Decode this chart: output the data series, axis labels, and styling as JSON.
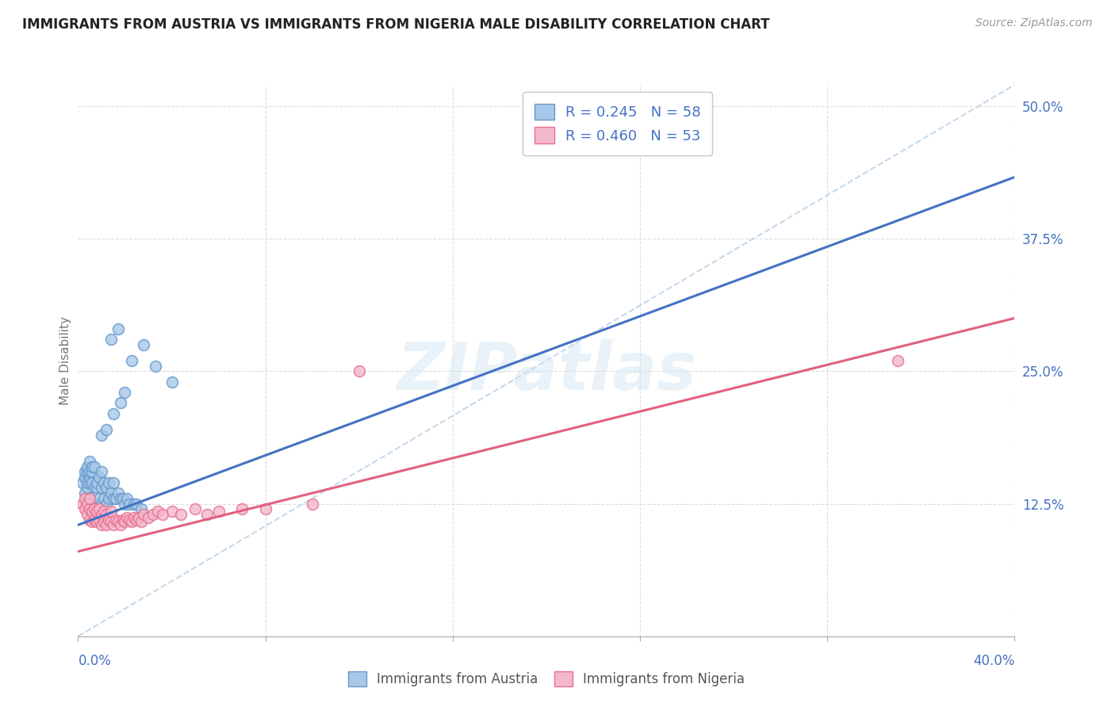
{
  "title": "IMMIGRANTS FROM AUSTRIA VS IMMIGRANTS FROM NIGERIA MALE DISABILITY CORRELATION CHART",
  "source": "Source: ZipAtlas.com",
  "ylabel": "Male Disability",
  "ytick_values": [
    0.0,
    0.125,
    0.25,
    0.375,
    0.5
  ],
  "xtick_values": [
    0.0,
    0.08,
    0.16,
    0.24,
    0.32,
    0.4
  ],
  "xlim": [
    0.0,
    0.4
  ],
  "ylim": [
    0.0,
    0.52
  ],
  "austria_color": "#a8c8e8",
  "austria_edge_color": "#6699cc",
  "austria_line_color": "#4472c4",
  "nigeria_color": "#f4b8cc",
  "nigeria_edge_color": "#e87090",
  "nigeria_line_color": "#e06080",
  "austria_R": 0.245,
  "austria_N": 58,
  "nigeria_R": 0.46,
  "nigeria_N": 53,
  "austria_line_intercept": 0.105,
  "austria_line_slope": 0.82,
  "nigeria_line_intercept": 0.08,
  "nigeria_line_slope": 0.55,
  "diagonal_line_color": "#a0c0e0",
  "background_color": "#ffffff",
  "grid_color": "#dddddd",
  "watermark_text": "ZIPatlas",
  "legend_box_color_austria": "#a8c8e8",
  "legend_box_edge_austria": "#6699cc",
  "legend_box_color_nigeria": "#f4b8cc",
  "legend_box_edge_nigeria": "#e87090",
  "legend_value_color": "#4472c4",
  "right_axis_label_color": "#4472c4",
  "austria_scatter_x": [
    0.002,
    0.003,
    0.003,
    0.003,
    0.004,
    0.004,
    0.004,
    0.004,
    0.005,
    0.005,
    0.005,
    0.005,
    0.005,
    0.006,
    0.006,
    0.006,
    0.006,
    0.007,
    0.007,
    0.007,
    0.008,
    0.008,
    0.008,
    0.009,
    0.009,
    0.01,
    0.01,
    0.01,
    0.011,
    0.011,
    0.012,
    0.012,
    0.013,
    0.013,
    0.014,
    0.015,
    0.015,
    0.016,
    0.017,
    0.018,
    0.019,
    0.02,
    0.021,
    0.022,
    0.024,
    0.025,
    0.027,
    0.01,
    0.012,
    0.015,
    0.018,
    0.02,
    0.014,
    0.017,
    0.023,
    0.028,
    0.033,
    0.04
  ],
  "austria_scatter_y": [
    0.145,
    0.135,
    0.15,
    0.155,
    0.14,
    0.145,
    0.155,
    0.16,
    0.13,
    0.145,
    0.15,
    0.155,
    0.165,
    0.125,
    0.145,
    0.155,
    0.16,
    0.125,
    0.14,
    0.16,
    0.125,
    0.14,
    0.145,
    0.13,
    0.15,
    0.125,
    0.14,
    0.155,
    0.13,
    0.145,
    0.125,
    0.14,
    0.13,
    0.145,
    0.135,
    0.13,
    0.145,
    0.13,
    0.135,
    0.13,
    0.13,
    0.125,
    0.13,
    0.125,
    0.125,
    0.125,
    0.12,
    0.19,
    0.195,
    0.21,
    0.22,
    0.23,
    0.28,
    0.29,
    0.26,
    0.275,
    0.255,
    0.24
  ],
  "nigeria_scatter_x": [
    0.002,
    0.003,
    0.003,
    0.004,
    0.004,
    0.005,
    0.005,
    0.005,
    0.006,
    0.006,
    0.007,
    0.007,
    0.008,
    0.008,
    0.009,
    0.009,
    0.01,
    0.01,
    0.011,
    0.011,
    0.012,
    0.012,
    0.013,
    0.014,
    0.014,
    0.015,
    0.016,
    0.017,
    0.018,
    0.019,
    0.02,
    0.021,
    0.022,
    0.023,
    0.024,
    0.025,
    0.026,
    0.027,
    0.028,
    0.03,
    0.032,
    0.034,
    0.036,
    0.04,
    0.044,
    0.05,
    0.055,
    0.06,
    0.07,
    0.08,
    0.1,
    0.12,
    0.35
  ],
  "nigeria_scatter_y": [
    0.125,
    0.12,
    0.13,
    0.115,
    0.125,
    0.11,
    0.12,
    0.13,
    0.108,
    0.118,
    0.11,
    0.12,
    0.108,
    0.118,
    0.11,
    0.12,
    0.105,
    0.115,
    0.108,
    0.118,
    0.105,
    0.115,
    0.11,
    0.108,
    0.118,
    0.105,
    0.11,
    0.108,
    0.105,
    0.11,
    0.108,
    0.112,
    0.11,
    0.108,
    0.112,
    0.11,
    0.112,
    0.108,
    0.115,
    0.112,
    0.115,
    0.118,
    0.115,
    0.118,
    0.115,
    0.12,
    0.115,
    0.118,
    0.12,
    0.12,
    0.125,
    0.25,
    0.26
  ]
}
